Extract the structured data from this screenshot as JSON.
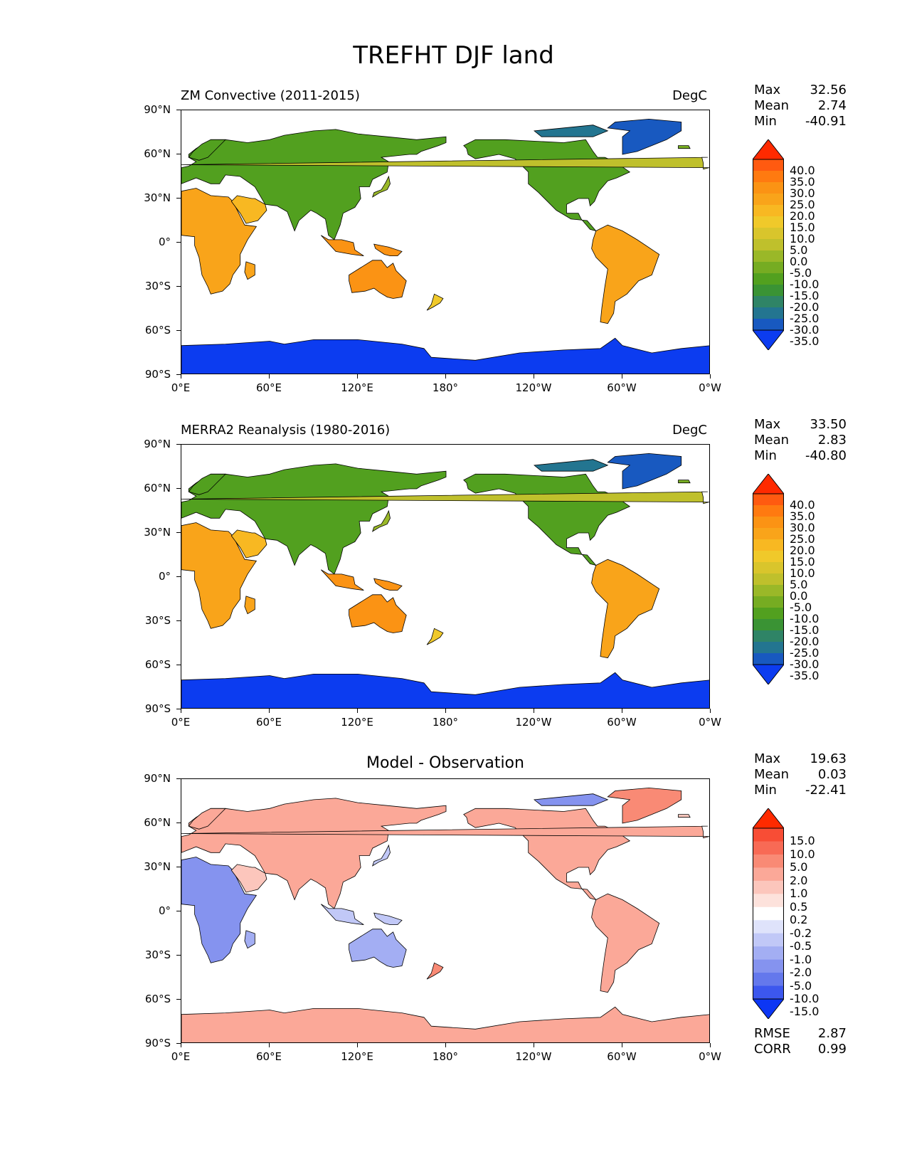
{
  "title": "TREFHT DJF land",
  "axes": {
    "lat_labels": [
      "90°N",
      "60°N",
      "30°N",
      "0°",
      "30°S",
      "60°S",
      "90°S"
    ],
    "lon_labels": [
      "0°E",
      "60°E",
      "120°E",
      "180°",
      "120°W",
      "60°W",
      "0°W"
    ]
  },
  "panels": [
    {
      "title_left": "ZM Convective (2011-2015)",
      "title_right": "DegC",
      "title_center": "",
      "stats": [
        {
          "label": "Max",
          "value": "32.56"
        },
        {
          "label": "Mean",
          "value": "2.74"
        },
        {
          "label": "Min",
          "value": "-40.91"
        }
      ],
      "colorbar": {
        "labels": [
          "40.0",
          "35.0",
          "30.0",
          "25.0",
          "20.0",
          "15.0",
          "10.0",
          "5.0",
          "0.0",
          "-5.0",
          "-10.0",
          "-15.0",
          "-20.0",
          "-25.0",
          "-30.0",
          "-35.0"
        ],
        "colors": [
          "#ff2a00",
          "#ff5a10",
          "#ff7a10",
          "#fb9314",
          "#f9a41a",
          "#f8b822",
          "#f0c92a",
          "#d9c52c",
          "#bfc02c",
          "#9ab828",
          "#76ac22",
          "#52a01f",
          "#3a9334",
          "#2f8466",
          "#237590",
          "#1859c0",
          "#0c3cf0"
        ]
      },
      "bottom_stats": []
    },
    {
      "title_left": "MERRA2 Reanalysis (1980-2016)",
      "title_right": "DegC",
      "title_center": "",
      "stats": [
        {
          "label": "Max",
          "value": "33.50"
        },
        {
          "label": "Mean",
          "value": "2.83"
        },
        {
          "label": "Min",
          "value": "-40.80"
        }
      ],
      "colorbar": {
        "labels": [
          "40.0",
          "35.0",
          "30.0",
          "25.0",
          "20.0",
          "15.0",
          "10.0",
          "5.0",
          "0.0",
          "-5.0",
          "-10.0",
          "-15.0",
          "-20.0",
          "-25.0",
          "-30.0",
          "-35.0"
        ],
        "colors": [
          "#ff2a00",
          "#ff5a10",
          "#ff7a10",
          "#fb9314",
          "#f9a41a",
          "#f8b822",
          "#f0c92a",
          "#d9c52c",
          "#bfc02c",
          "#9ab828",
          "#76ac22",
          "#52a01f",
          "#3a9334",
          "#2f8466",
          "#237590",
          "#1859c0",
          "#0c3cf0"
        ]
      },
      "bottom_stats": []
    },
    {
      "title_left": "",
      "title_right": "",
      "title_center": "Model - Observation",
      "stats": [
        {
          "label": "Max",
          "value": "19.63"
        },
        {
          "label": "Mean",
          "value": "0.03"
        },
        {
          "label": "Min",
          "value": "-22.41"
        }
      ],
      "colorbar": {
        "labels": [
          "15.0",
          "10.0",
          "5.0",
          "2.0",
          "1.0",
          "0.5",
          "0.2",
          "-0.2",
          "-0.5",
          "-1.0",
          "-2.0",
          "-5.0",
          "-10.0",
          "-15.0"
        ],
        "colors": [
          "#ff2a00",
          "#f84d35",
          "#f86a55",
          "#f98a75",
          "#fba898",
          "#fcc6bc",
          "#fde2dc",
          "#ffffff",
          "#dfe3fb",
          "#c1c8f7",
          "#a3aef3",
          "#8593ef",
          "#6478ec",
          "#3c57ee",
          "#0c36f4"
        ]
      },
      "bottom_stats": [
        {
          "label": "RMSE",
          "value": "2.87"
        },
        {
          "label": "CORR",
          "value": "0.99"
        }
      ]
    }
  ]
}
